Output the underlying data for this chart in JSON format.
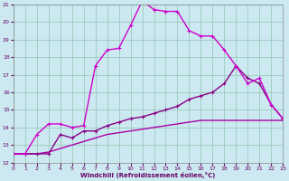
{
  "xlabel": "Windchill (Refroidissement éolien,°C)",
  "background_color": "#cce8f0",
  "grid_color": "#99ccbb",
  "line_color1": "#cc00cc",
  "line_color2": "#880088",
  "line_color3": "#aa00aa",
  "xmin": 0,
  "xmax": 23,
  "ymin": 12,
  "ymax": 21,
  "series1_x": [
    0,
    1,
    2,
    3,
    4,
    5,
    6,
    7,
    8,
    9,
    10,
    11,
    12,
    13,
    14,
    15,
    16,
    17,
    18,
    19,
    20,
    21,
    22,
    23
  ],
  "series1_y": [
    12.5,
    12.5,
    13.6,
    14.2,
    14.2,
    14.0,
    14.1,
    17.5,
    18.4,
    18.5,
    19.8,
    21.2,
    20.7,
    20.6,
    20.6,
    19.5,
    19.2,
    19.2,
    18.4,
    17.5,
    16.5,
    16.8,
    15.3,
    14.5
  ],
  "series2_x": [
    0,
    1,
    2,
    3,
    4,
    5,
    6,
    7,
    8,
    9,
    10,
    11,
    12,
    13,
    14,
    15,
    16,
    17,
    18,
    19,
    20,
    21,
    22,
    23
  ],
  "series2_y": [
    12.5,
    12.5,
    12.5,
    12.5,
    13.6,
    13.4,
    13.8,
    13.8,
    14.1,
    14.3,
    14.5,
    14.6,
    14.8,
    15.0,
    15.2,
    15.6,
    15.8,
    16.0,
    16.5,
    17.5,
    16.8,
    16.5,
    15.3,
    14.5
  ],
  "series3_x": [
    0,
    1,
    2,
    3,
    4,
    5,
    6,
    7,
    8,
    9,
    10,
    11,
    12,
    13,
    14,
    15,
    16,
    17,
    18,
    19,
    20,
    21,
    22,
    23
  ],
  "series3_y": [
    12.5,
    12.5,
    12.5,
    12.6,
    12.8,
    13.0,
    13.2,
    13.4,
    13.6,
    13.7,
    13.8,
    13.9,
    14.0,
    14.1,
    14.2,
    14.3,
    14.4,
    14.4,
    14.4,
    14.4,
    14.4,
    14.4,
    14.4,
    14.4
  ]
}
